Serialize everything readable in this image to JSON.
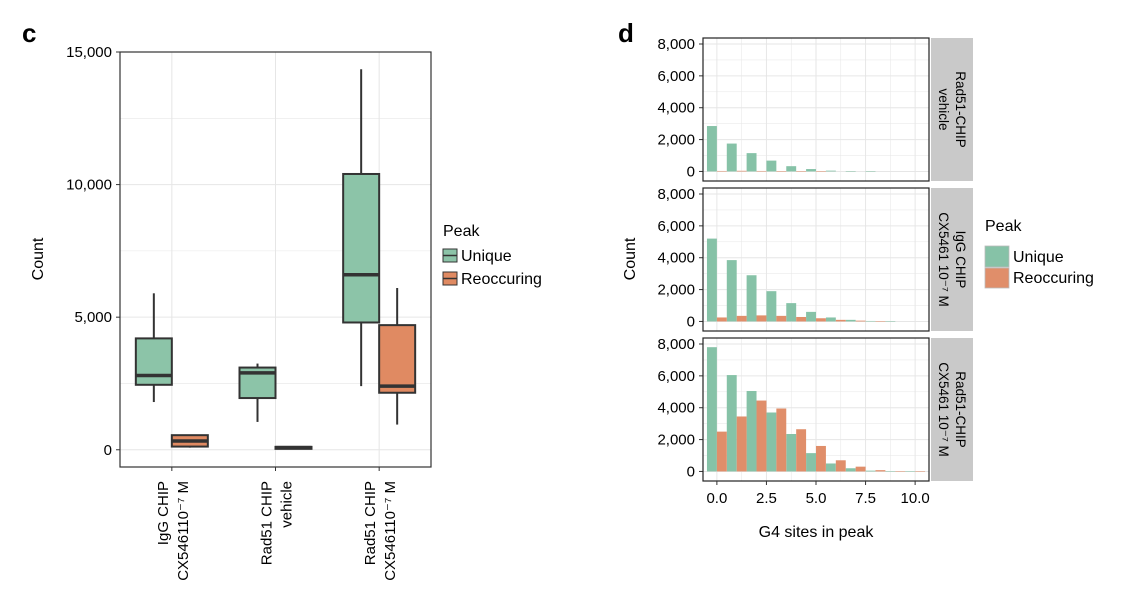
{
  "colors": {
    "unique": "#86c2a7",
    "reoccuring": "#e08e6a",
    "box_unique": "#8cc4a8",
    "box_reoccuring": "#e08a62",
    "grid": "#e6e6e6",
    "strip_bg": "#c9c9c9"
  },
  "panel_c": {
    "letter": "c",
    "ylabel": "Count",
    "legend_title": "Peak",
    "legend_items": [
      "Unique",
      "Reoccuring"
    ]
  },
  "panel_d": {
    "letter": "d",
    "ylabel": "Count",
    "xlabel": "G4 sites in peak",
    "legend_title": "Peak",
    "legend_items": [
      "Unique",
      "Reoccuring"
    ]
  },
  "chart_data": [
    {
      "type": "box",
      "panel": "c",
      "title": "",
      "ylabel": "Count",
      "ylim": [
        -650,
        15000
      ],
      "yticks": [
        0,
        5000,
        10000,
        15000
      ],
      "ytick_labels": [
        "0",
        "5,000",
        "10,000",
        "15,000"
      ],
      "grid": true,
      "legend_title": "Peak",
      "legend_position": "right",
      "categories": [
        [
          "IgG CHIP",
          "CX546110⁻⁷ M"
        ],
        [
          "Rad51 CHIP",
          "vehicle"
        ],
        [
          "Rad51 CHIP",
          "CX546110⁻⁷ M"
        ]
      ],
      "series": [
        {
          "name": "Unique",
          "boxes": [
            {
              "whisker_low": 1800,
              "q1": 2450,
              "median": 2800,
              "q3": 4200,
              "whisker_high": 5900
            },
            {
              "whisker_low": 1050,
              "q1": 1950,
              "median": 2900,
              "q3": 3100,
              "whisker_high": 3250
            },
            {
              "whisker_low": 2400,
              "q1": 4800,
              "median": 6600,
              "q3": 10400,
              "whisker_high": 14350
            }
          ]
        },
        {
          "name": "Reoccuring",
          "boxes": [
            {
              "whisker_low": 80,
              "q1": 120,
              "median": 330,
              "q3": 550,
              "whisker_high": 550
            },
            {
              "whisker_low": 40,
              "q1": 60,
              "median": 80,
              "q3": 110,
              "whisker_high": 130
            },
            {
              "whisker_low": 950,
              "q1": 2150,
              "median": 2400,
              "q3": 4700,
              "whisker_high": 6100
            }
          ]
        }
      ]
    },
    {
      "type": "bar",
      "panel": "d",
      "title": "",
      "xlabel": "G4 sites in peak",
      "ylabel": "Count",
      "x_range": [
        -0.7,
        10.7
      ],
      "xticks": [
        0,
        2.5,
        5,
        7.5,
        10
      ],
      "xtick_labels": [
        "0.0",
        "2.5",
        "5.0",
        "7.5",
        "10.0"
      ],
      "ylim": [
        -600,
        8000
      ],
      "yticks": [
        0,
        2000,
        4000,
        6000,
        8000
      ],
      "ytick_labels": [
        "0",
        "2,000",
        "4,000",
        "6,000",
        "8,000"
      ],
      "grid": true,
      "legend_title": "Peak",
      "legend_position": "right",
      "x": [
        0,
        1,
        2,
        3,
        4,
        5,
        6,
        7,
        8,
        9,
        10
      ],
      "facets": [
        {
          "strip": [
            "Rad51-CHIP",
            "vehicle"
          ],
          "series": [
            {
              "name": "Unique",
              "values": [
                2850,
                1750,
                1150,
                680,
                330,
                150,
                50,
                20,
                5,
                0,
                0
              ]
            },
            {
              "name": "Reoccuring",
              "values": [
                30,
                40,
                30,
                20,
                10,
                5,
                0,
                0,
                0,
                0,
                0
              ]
            }
          ]
        },
        {
          "strip": [
            "IgG CHIP",
            "CX5461 10⁻⁷ M"
          ],
          "series": [
            {
              "name": "Unique",
              "values": [
                5200,
                3850,
                2900,
                1900,
                1150,
                600,
                250,
                100,
                30,
                10,
                0
              ]
            },
            {
              "name": "Reoccuring",
              "values": [
                250,
                350,
                380,
                350,
                280,
                200,
                100,
                50,
                20,
                0,
                0
              ]
            }
          ]
        },
        {
          "strip": [
            "Rad51-CHIP",
            "CX5461 10⁻⁷ M"
          ],
          "series": [
            {
              "name": "Unique",
              "values": [
                7800,
                6050,
                5050,
                3700,
                2350,
                1150,
                500,
                200,
                50,
                20,
                5
              ]
            },
            {
              "name": "Reoccuring",
              "values": [
                2500,
                3450,
                4450,
                3950,
                2650,
                1600,
                700,
                300,
                80,
                20,
                5
              ]
            }
          ]
        }
      ]
    }
  ]
}
